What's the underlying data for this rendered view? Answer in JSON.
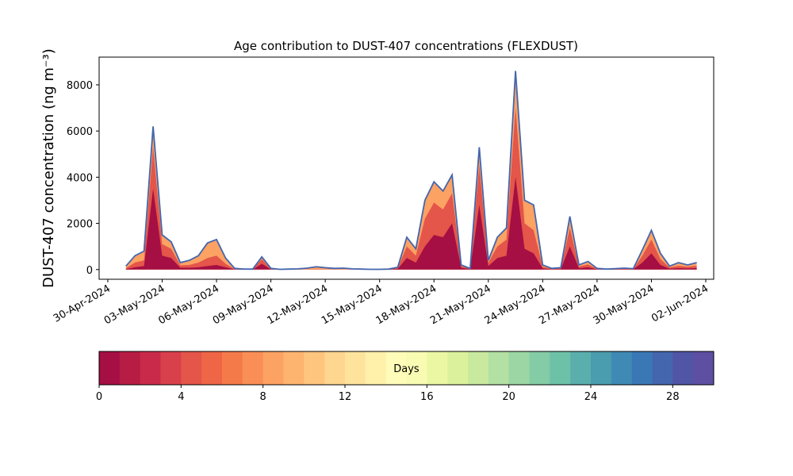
{
  "chart_data": {
    "type": "stacked-area",
    "title": "Age contribution to DUST-407 concentrations (FLEXDUST)",
    "y_label": "DUST-407 concentration (ng m⁻³)",
    "x": [
      "2024-05-01T00:00",
      "2024-05-01T12:00",
      "2024-05-02T00:00",
      "2024-05-02T12:00",
      "2024-05-03T00:00",
      "2024-05-03T12:00",
      "2024-05-04T00:00",
      "2024-05-04T12:00",
      "2024-05-05T00:00",
      "2024-05-05T12:00",
      "2024-05-06T00:00",
      "2024-05-06T12:00",
      "2024-05-07T00:00",
      "2024-05-07T12:00",
      "2024-05-08T00:00",
      "2024-05-08T12:00",
      "2024-05-09T00:00",
      "2024-05-09T12:00",
      "2024-05-10T00:00",
      "2024-05-10T12:00",
      "2024-05-11T00:00",
      "2024-05-11T12:00",
      "2024-05-12T00:00",
      "2024-05-12T12:00",
      "2024-05-13T00:00",
      "2024-05-13T12:00",
      "2024-05-14T00:00",
      "2024-05-14T12:00",
      "2024-05-15T00:00",
      "2024-05-15T12:00",
      "2024-05-16T00:00",
      "2024-05-16T12:00",
      "2024-05-17T00:00",
      "2024-05-17T12:00",
      "2024-05-18T00:00",
      "2024-05-18T12:00",
      "2024-05-19T00:00",
      "2024-05-19T12:00",
      "2024-05-20T00:00",
      "2024-05-20T12:00",
      "2024-05-21T00:00",
      "2024-05-21T12:00",
      "2024-05-22T00:00",
      "2024-05-22T12:00",
      "2024-05-23T00:00",
      "2024-05-23T12:00",
      "2024-05-24T00:00",
      "2024-05-24T12:00",
      "2024-05-25T00:00",
      "2024-05-25T12:00",
      "2024-05-26T00:00",
      "2024-05-26T12:00",
      "2024-05-27T00:00",
      "2024-05-27T12:00",
      "2024-05-28T00:00",
      "2024-05-28T12:00",
      "2024-05-29T00:00",
      "2024-05-29T12:00",
      "2024-05-30T00:00",
      "2024-05-30T12:00",
      "2024-05-31T00:00",
      "2024-05-31T12:00",
      "2024-06-01T00:00",
      "2024-06-01T12:00"
    ],
    "series": [
      {
        "color": "#a50f43",
        "values": [
          20,
          100,
          150,
          3500,
          600,
          500,
          80,
          80,
          100,
          150,
          200,
          100,
          10,
          0,
          0,
          250,
          10,
          0,
          0,
          0,
          0,
          0,
          0,
          0,
          0,
          0,
          0,
          0,
          0,
          5,
          30,
          500,
          300,
          1000,
          1500,
          1400,
          2000,
          80,
          20,
          2800,
          150,
          500,
          600,
          4000,
          900,
          700,
          50,
          10,
          20,
          1000,
          60,
          100,
          10,
          5,
          10,
          10,
          10,
          300,
          700,
          200,
          40,
          60,
          50,
          60
        ]
      },
      {
        "color": "#e4554a",
        "values": [
          40,
          200,
          250,
          1800,
          500,
          400,
          100,
          120,
          200,
          350,
          400,
          150,
          10,
          5,
          5,
          200,
          10,
          0,
          5,
          5,
          10,
          20,
          10,
          10,
          10,
          5,
          5,
          0,
          0,
          5,
          40,
          500,
          300,
          1200,
          1400,
          1200,
          1300,
          70,
          20,
          1700,
          150,
          500,
          700,
          3000,
          1100,
          1000,
          70,
          20,
          30,
          800,
          70,
          120,
          20,
          5,
          10,
          20,
          10,
          300,
          600,
          250,
          50,
          100,
          70,
          100
        ]
      },
      {
        "color": "#fca263",
        "values": [
          90,
          300,
          400,
          900,
          400,
          300,
          120,
          200,
          300,
          650,
          700,
          250,
          30,
          15,
          15,
          100,
          30,
          10,
          15,
          25,
          50,
          100,
          70,
          40,
          50,
          25,
          15,
          10,
          10,
          10,
          30,
          400,
          300,
          800,
          900,
          800,
          800,
          50,
          10,
          800,
          100,
          400,
          500,
          1600,
          1000,
          1100,
          80,
          20,
          30,
          500,
          70,
          130,
          20,
          10,
          20,
          30,
          20,
          250,
          400,
          250,
          60,
          140,
          80,
          140
        ]
      }
    ],
    "outline_color": "#4466ae",
    "xlim": [
      "2024-04-29T12:30",
      "2024-06-02T10:30"
    ],
    "xticks": [
      {
        "value": "2024-04-30",
        "label": "30-Apr-2024"
      },
      {
        "value": "2024-05-03",
        "label": "03-May-2024"
      },
      {
        "value": "2024-05-06",
        "label": "06-May-2024"
      },
      {
        "value": "2024-05-09",
        "label": "09-May-2024"
      },
      {
        "value": "2024-05-12",
        "label": "12-May-2024"
      },
      {
        "value": "2024-05-15",
        "label": "15-May-2024"
      },
      {
        "value": "2024-05-18",
        "label": "18-May-2024"
      },
      {
        "value": "2024-05-21",
        "label": "21-May-2024"
      },
      {
        "value": "2024-05-24",
        "label": "24-May-2024"
      },
      {
        "value": "2024-05-27",
        "label": "27-May-2024"
      },
      {
        "value": "2024-05-30",
        "label": "30-May-2024"
      },
      {
        "value": "2024-06-02",
        "label": "02-Jun-2024"
      }
    ],
    "ylim": [
      -420,
      9200
    ],
    "yticks": [
      0,
      2000,
      4000,
      6000,
      8000
    ],
    "colorbar": {
      "label": "Days",
      "lim": [
        0,
        30
      ],
      "ticks": [
        0,
        4,
        8,
        12,
        16,
        20,
        24,
        28
      ],
      "colors": [
        "#a50f43",
        "#b71c44",
        "#c92a4a",
        "#d8414c",
        "#e4554a",
        "#ee6646",
        "#f57a49",
        "#f98f56",
        "#fca263",
        "#fdb46f",
        "#fec57e",
        "#fed68f",
        "#fee39d",
        "#fff0aa",
        "#fffbb8",
        "#f8fbb2",
        "#ecf7a4",
        "#dcf19b",
        "#c8e99e",
        "#b3e0a3",
        "#9bd6a4",
        "#84cca5",
        "#6dc1a7",
        "#5aaeab",
        "#4a9dae",
        "#3f8ab4",
        "#3a78b5",
        "#4466ae",
        "#5155a5",
        "#5e4fa2"
      ]
    }
  }
}
